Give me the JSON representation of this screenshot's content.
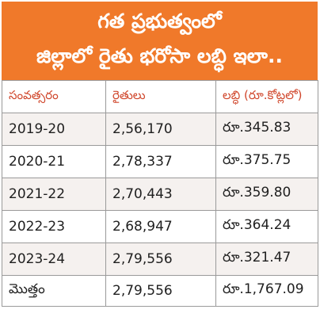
{
  "header": {
    "line1": "గత ప్రభుత్వంలో",
    "line2": "జిల్లాలో రైతు భరోసా లబ్ధి ఇలా.."
  },
  "table": {
    "columns": [
      "సంవత్సరం",
      "రైతులు",
      "లబ్ధి (రూ.కోట్లలో)"
    ],
    "rows": [
      {
        "year": "2019-20",
        "farmers": "2,56,170",
        "benefit": "రూ.345.83"
      },
      {
        "year": "2020-21",
        "farmers": "2,78,337",
        "benefit": "రూ.375.75"
      },
      {
        "year": "2021-22",
        "farmers": "2,70,443",
        "benefit": "రూ.359.80"
      },
      {
        "year": "2022-23",
        "farmers": "2,68,947",
        "benefit": "రూ.364.24"
      },
      {
        "year": "2023-24",
        "farmers": "2,79,556",
        "benefit": "రూ.321.47"
      }
    ],
    "total": {
      "label": "మొత్తం",
      "farmers": "2,79,556",
      "benefit": "రూ.1,767.09"
    }
  },
  "colors": {
    "header_bg": "#f0792a",
    "header_text": "#ffffff",
    "column_header_text": "#d0462b",
    "alt_row_bg": "#f5f1ef",
    "border": "#9a9a9a"
  }
}
